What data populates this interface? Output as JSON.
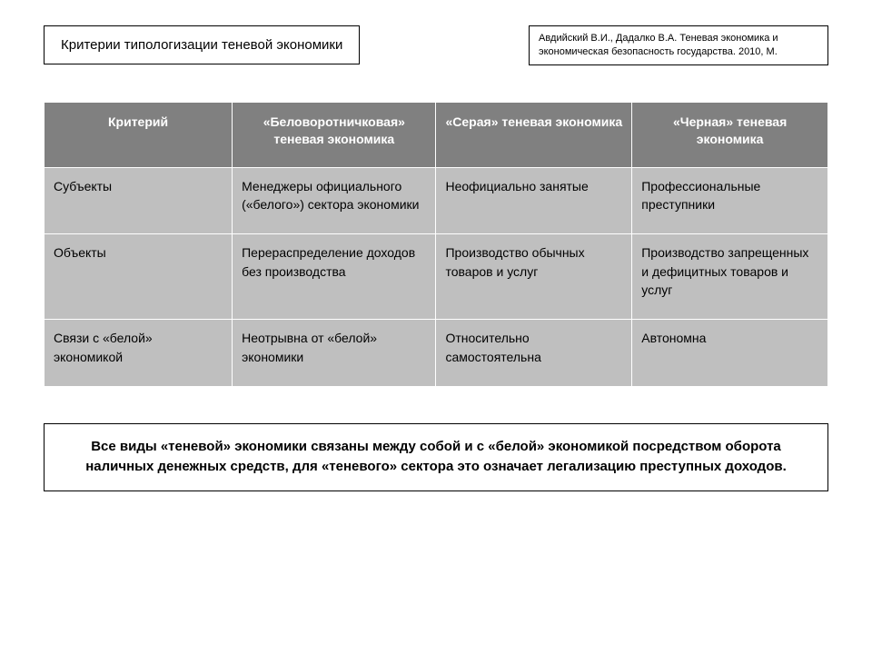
{
  "title": "Критерии типологизации теневой экономики",
  "citation": "Авдийский В.И., Дадалко В.А. Теневая экономика и экономическая безопасность государства. 2010, М.",
  "table": {
    "columns": [
      "Критерий",
      "«Беловоротничковая» теневая экономика",
      "«Серая» теневая экономика",
      "«Черная» теневая экономика"
    ],
    "rows": [
      [
        "Субъекты",
        "Менеджеры официального («белого») сектора экономики",
        "Неофициально занятые",
        "Профессиональные преступники"
      ],
      [
        "Объекты",
        "Перераспределение доходов без производства",
        "Производство обычных товаров и услуг",
        "Производство запрещенных и дефицитных товаров и услуг"
      ],
      [
        "Связи с «белой» экономикой",
        "Неотрывна от «белой» экономики",
        "Относительно самостоятельна",
        "Автономна"
      ]
    ],
    "header_bg": "#808080",
    "header_fg": "#ffffff",
    "cell_bg": "#bfbfbf",
    "cell_fg": "#000000",
    "border_color": "#ffffff",
    "col_widths_pct": [
      24,
      26,
      25,
      25
    ],
    "header_fontsize": 14,
    "cell_fontsize": 14
  },
  "footer": "Все виды «теневой» экономики связаны между собой и с «белой» экономикой посредством оборота наличных денежных средств, для «теневого» сектора это означает легализацию преступных доходов.",
  "page_bg": "#ffffff",
  "box_border_color": "#000000"
}
